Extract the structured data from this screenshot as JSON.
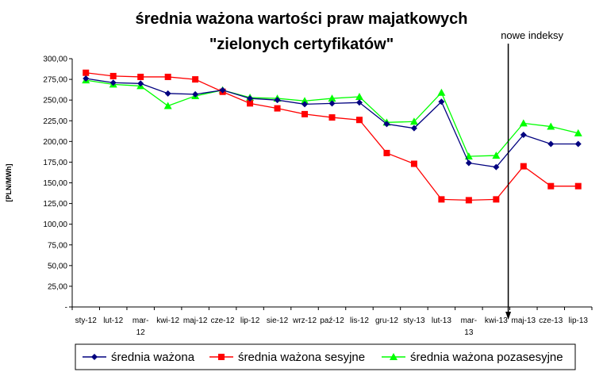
{
  "chart_data": {
    "type": "line",
    "title_lines": [
      "średnia ważona wartości praw majatkowych",
      "\"zielonych certyfikatów\""
    ],
    "ylabel": "[PLN/MWh]",
    "xlabel": "",
    "ylim": [
      0,
      300
    ],
    "yticks": [
      {
        "value": 0,
        "label": "-"
      },
      {
        "value": 25,
        "label": "25,00"
      },
      {
        "value": 50,
        "label": "50,00"
      },
      {
        "value": 75,
        "label": "75,00"
      },
      {
        "value": 100,
        "label": "100,00"
      },
      {
        "value": 125,
        "label": "125,00"
      },
      {
        "value": 150,
        "label": "150,00"
      },
      {
        "value": 175,
        "label": "175,00"
      },
      {
        "value": 200,
        "label": "200,00"
      },
      {
        "value": 225,
        "label": "225,00"
      },
      {
        "value": 250,
        "label": "250,00"
      },
      {
        "value": 275,
        "label": "275,00"
      },
      {
        "value": 300,
        "label": "300,00"
      }
    ],
    "categories": [
      "sty-12",
      "lut-12",
      "mar-12",
      "kwi-12",
      "maj-12",
      "cze-12",
      "lip-12",
      "sie-12",
      "wrz-12",
      "paź-12",
      "lis-12",
      "gru-12",
      "sty-13",
      "lut-13",
      "mar-13",
      "kwi-13",
      "maj-13",
      "cze-13",
      "lip-13"
    ],
    "category_label_lines": [
      [
        "sty-12"
      ],
      [
        "lut-12"
      ],
      [
        "mar-",
        "12"
      ],
      [
        "kwi-12"
      ],
      [
        "maj-12"
      ],
      [
        "cze-12"
      ],
      [
        "lip-12"
      ],
      [
        "sie-12"
      ],
      [
        "wrz-12"
      ],
      [
        "paź-12"
      ],
      [
        "lis-12"
      ],
      [
        "gru-12"
      ],
      [
        "sty-13"
      ],
      [
        "lut-13"
      ],
      [
        "mar-",
        "13"
      ],
      [
        "kwi-13"
      ],
      [
        "maj-13"
      ],
      [
        "cze-13"
      ],
      [
        "lip-13"
      ]
    ],
    "series": [
      {
        "name": "średnia ważona",
        "color": "#00007f",
        "marker": "diamond",
        "values": [
          276,
          271,
          270,
          258,
          257,
          262,
          252,
          250,
          245,
          246,
          247,
          221,
          216,
          248,
          174,
          169,
          208,
          197,
          197
        ]
      },
      {
        "name": "średnia ważona sesyjne",
        "color": "#ff0000",
        "marker": "square",
        "values": [
          283,
          279,
          278,
          278,
          275,
          260,
          246,
          240,
          233,
          229,
          226,
          186,
          173,
          130,
          129,
          130,
          170,
          146,
          146
        ]
      },
      {
        "name": "średnia ważona pozasesyjne",
        "color": "#00ff00",
        "marker": "triangle",
        "values": [
          274,
          269,
          267,
          243,
          255,
          262,
          253,
          252,
          249,
          252,
          254,
          223,
          224,
          259,
          182,
          183,
          222,
          218,
          210
        ]
      }
    ],
    "annotation": {
      "text": "nowe indeksy",
      "at_between": [
        "kwi-13",
        "maj-13"
      ]
    },
    "legend_position": "bottom",
    "grid": false
  }
}
